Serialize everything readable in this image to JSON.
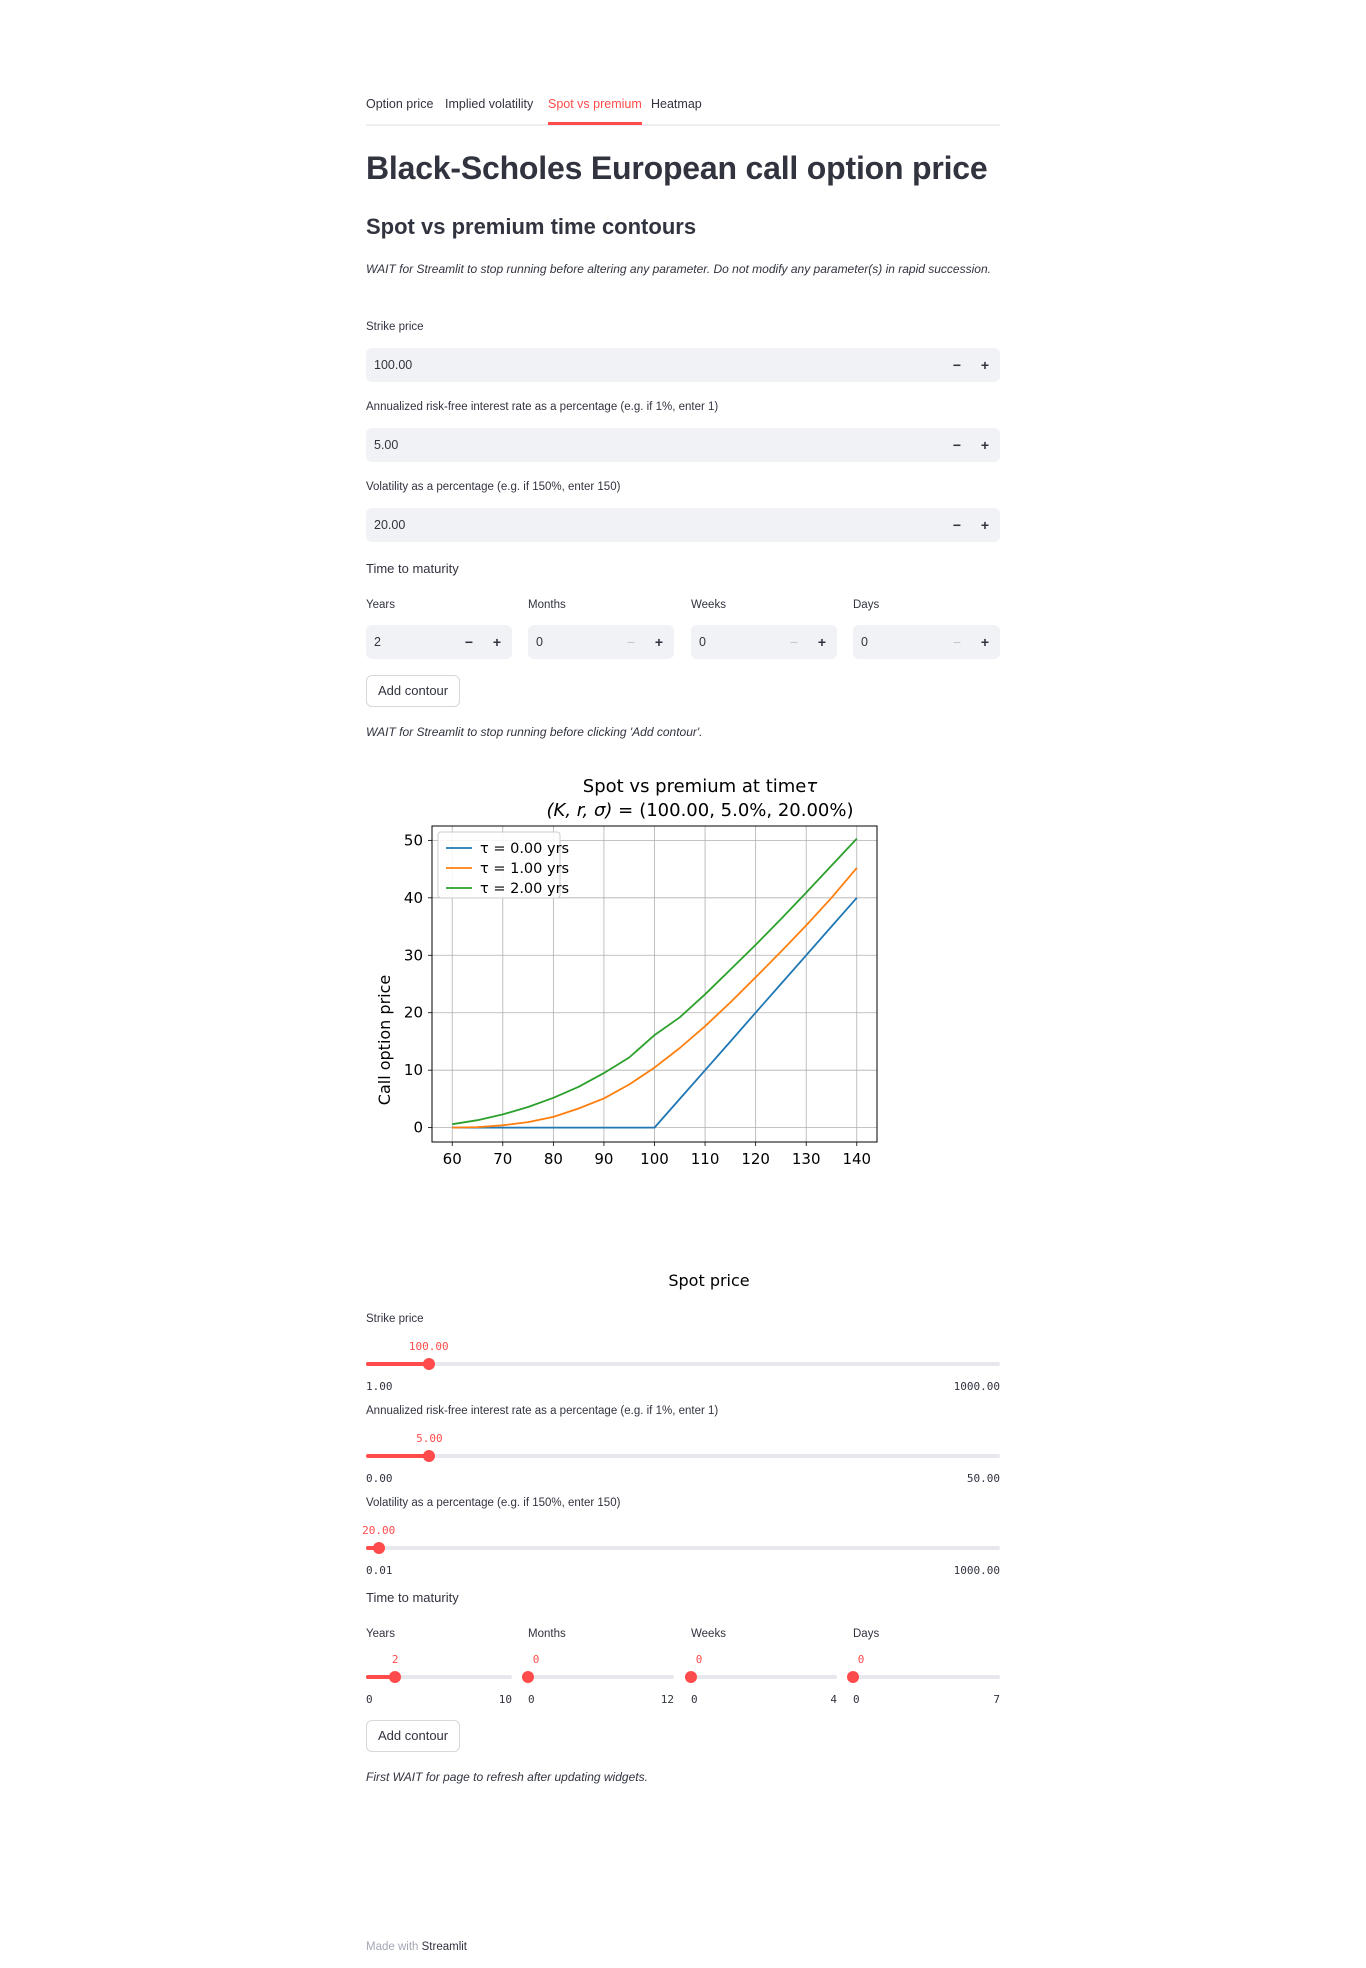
{
  "tabs": [
    {
      "label": "Option price"
    },
    {
      "label": "Implied volatility"
    },
    {
      "label": "Spot vs premium"
    },
    {
      "label": "Heatmap"
    }
  ],
  "active_tab": 2,
  "title": "Black-Scholes European call option price",
  "subtitle": "Spot vs premium time contours",
  "warning_params": "WAIT for Streamlit to stop running before altering any parameter. Do not modify any parameter(s) in rapid succession.",
  "inputs": {
    "strike": {
      "label": "Strike price",
      "value": "100.00"
    },
    "rate": {
      "label": "Annualized risk-free interest rate as a percentage (e.g. if 1%, enter 1)",
      "value": "5.00"
    },
    "vol": {
      "label": "Volatility as a percentage (e.g. if 150%, enter 150)",
      "value": "20.00"
    },
    "ttm_label": "Time to maturity",
    "years": {
      "label": "Years",
      "value": "2"
    },
    "months": {
      "label": "Months",
      "value": "0"
    },
    "weeks": {
      "label": "Weeks",
      "value": "0"
    },
    "days": {
      "label": "Days",
      "value": "0"
    },
    "minus": "−",
    "plus": "+"
  },
  "add_contour_label": "Add contour",
  "warning_add": "WAIT for Streamlit to stop running before clicking 'Add contour'.",
  "chart_data": {
    "type": "line",
    "title_line1": "Spot vs premium at time",
    "title_symbol": "τ",
    "title_line2_math": "(K, r, σ) =",
    "title_line2_values": "(100.00, 5.0%, 20.00%)",
    "xlabel": "Spot price",
    "ylabel": "Call option price",
    "xlim": [
      56,
      144
    ],
    "ylim": [
      -2.5,
      52.5
    ],
    "xticks": [
      60,
      70,
      80,
      90,
      100,
      110,
      120,
      130,
      140
    ],
    "yticks": [
      0,
      10,
      20,
      30,
      40,
      50
    ],
    "grid": true,
    "legend_position": "upper-left",
    "x": [
      60,
      65,
      70,
      75,
      80,
      85,
      90,
      95,
      100,
      105,
      110,
      115,
      120,
      125,
      130,
      135,
      140
    ],
    "series": [
      {
        "name": "τ =  0.00 yrs",
        "color": "#1f77b4",
        "values": [
          0,
          0,
          0,
          0,
          0,
          0,
          0,
          0,
          0,
          5,
          10,
          15,
          20,
          25,
          30,
          35,
          40
        ]
      },
      {
        "name": "τ =  1.00 yrs",
        "color": "#ff7f0e",
        "values": [
          0.01,
          0.09,
          0.4,
          0.97,
          1.86,
          3.33,
          5.09,
          7.5,
          10.45,
          13.86,
          17.66,
          21.8,
          26.17,
          30.6,
          35.2,
          40.0,
          45.2
        ]
      },
      {
        "name": "τ =  2.00 yrs",
        "color": "#2ca02c",
        "values": [
          0.6,
          1.3,
          2.3,
          3.6,
          5.2,
          7.1,
          9.5,
          12.2,
          16.1,
          19.2,
          23.2,
          27.5,
          31.8,
          36.3,
          40.9,
          45.6,
          50.3
        ]
      }
    ]
  },
  "sliders": {
    "strike": {
      "label": "Strike price",
      "value": "100.00",
      "min": "1.00",
      "max": "1000.00",
      "frac": 0.099
    },
    "rate": {
      "label": "Annualized risk-free interest rate as a percentage (e.g. if 1%, enter 1)",
      "value": "5.00",
      "min": "0.00",
      "max": "50.00",
      "frac": 0.1
    },
    "vol": {
      "label": "Volatility as a percentage (e.g. if 150%, enter 150)",
      "value": "20.00",
      "min": "0.01",
      "max": "1000.00",
      "frac": 0.02
    },
    "ttm_label": "Time to maturity",
    "years": {
      "label": "Years",
      "value": "2",
      "min": "0",
      "max": "10",
      "frac": 0.2
    },
    "months": {
      "label": "Months",
      "value": "0",
      "min": "0",
      "max": "12",
      "frac": 0
    },
    "weeks": {
      "label": "Weeks",
      "value": "0",
      "min": "0",
      "max": "4",
      "frac": 0
    },
    "days": {
      "label": "Days",
      "value": "0",
      "min": "0",
      "max": "7",
      "frac": 0
    }
  },
  "warning_refresh": "First WAIT for page to refresh after updating widgets.",
  "footer": {
    "prefix": "Made with",
    "brand": "Streamlit"
  }
}
